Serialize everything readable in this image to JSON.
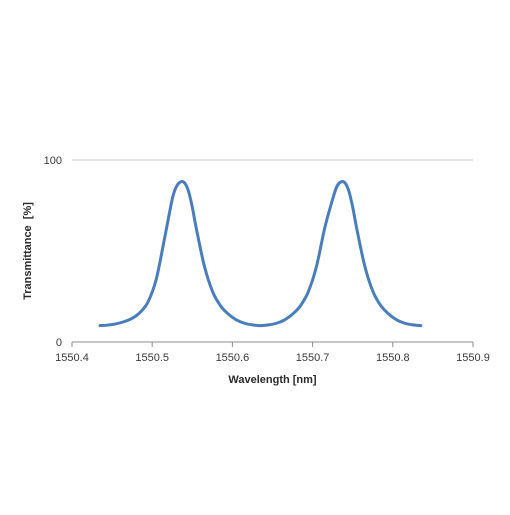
{
  "chart_data": {
    "type": "line",
    "title": "",
    "xlabel": "Wavelength [nm]",
    "ylabel": "Transmittance  [%]",
    "xlim": [
      1550.4,
      1550.9
    ],
    "ylim": [
      0,
      100
    ],
    "x_ticks": [
      "1550.4",
      "1550.5",
      "1550.6",
      "1550.7",
      "1550.8",
      "1550.9"
    ],
    "y_ticks": [
      "0",
      "100"
    ],
    "grid": {
      "horizontal": [
        100
      ],
      "vertical": false
    },
    "legend": "none",
    "series": [
      {
        "color": "#4a7ebb",
        "x": [
          1550.435,
          1550.445,
          1550.455,
          1550.465,
          1550.475,
          1550.485,
          1550.495,
          1550.505,
          1550.515,
          1550.525,
          1550.53,
          1550.535,
          1550.54,
          1550.545,
          1550.55,
          1550.555,
          1550.565,
          1550.575,
          1550.585,
          1550.595,
          1550.605,
          1550.615,
          1550.625,
          1550.635,
          1550.645,
          1550.655,
          1550.665,
          1550.675,
          1550.685,
          1550.695,
          1550.705,
          1550.715,
          1550.725,
          1550.73,
          1550.735,
          1550.74,
          1550.745,
          1550.75,
          1550.755,
          1550.765,
          1550.775,
          1550.785,
          1550.795,
          1550.805,
          1550.815,
          1550.825,
          1550.835
        ],
        "y": [
          9.0,
          9.3,
          10.0,
          11.2,
          13.0,
          16.3,
          22.2,
          34.4,
          56.0,
          78.5,
          85.2,
          87.9,
          87.6,
          83.2,
          74.1,
          62.4,
          41.8,
          28.0,
          20.0,
          15.3,
          12.1,
          10.3,
          9.4,
          9.0,
          9.4,
          10.3,
          12.1,
          15.3,
          20.0,
          28.0,
          41.8,
          62.4,
          78.5,
          85.2,
          87.9,
          87.6,
          83.2,
          74.1,
          62.4,
          41.8,
          28.0,
          20.0,
          15.3,
          12.1,
          10.3,
          9.4,
          9.0
        ]
      }
    ]
  }
}
